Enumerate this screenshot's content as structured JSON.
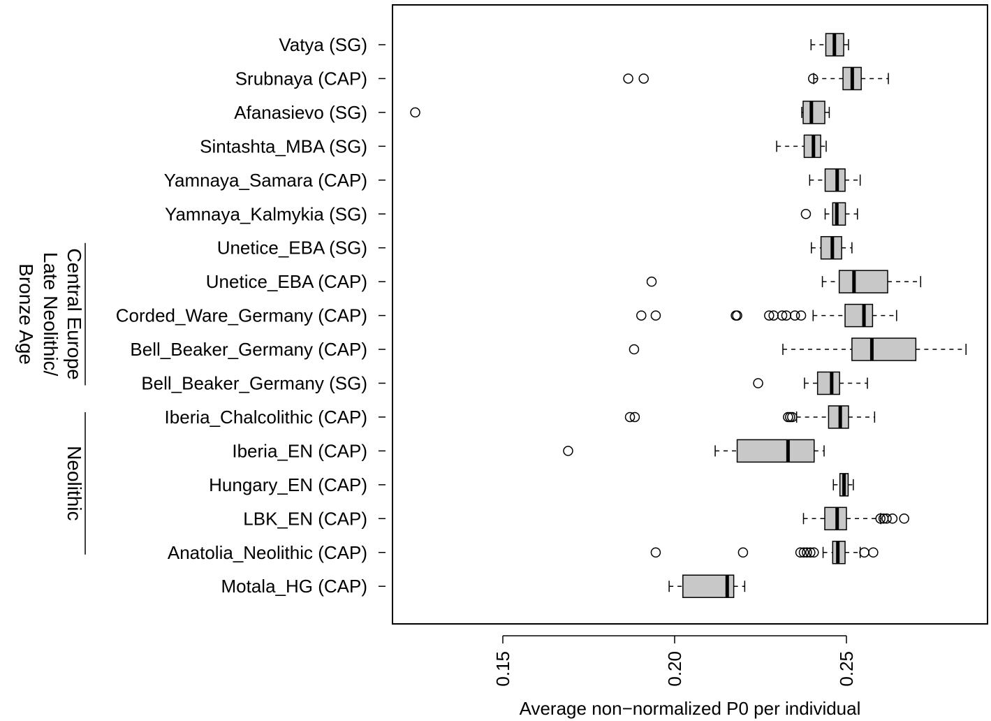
{
  "chart_data": {
    "type": "boxplot",
    "orientation": "horizontal",
    "xlabel": "Average non−normalized P0 per individual",
    "ylabel": "",
    "xlim": [
      0.118,
      0.285
    ],
    "xticks": [
      {
        "value": 0.15,
        "label": "0.15"
      },
      {
        "value": 0.2,
        "label": "0.20"
      },
      {
        "value": 0.25,
        "label": "0.25"
      }
    ],
    "groups": [
      {
        "lines": [
          "Central Europe",
          "Late Neolithic/",
          "Bronze Age"
        ],
        "from": "Unetice_EBA (SG)",
        "to": "Bell_Beaker_Germany (SG)"
      },
      {
        "lines": [
          "Neolithic"
        ],
        "from": "Iberia_Chalcolithic (CAP)",
        "to": "Anatolia_Neolithic (CAP)"
      }
    ],
    "series": [
      {
        "name": "Vatya (SG)",
        "min": 0.2397,
        "q1": 0.244,
        "median": 0.2465,
        "q3": 0.2492,
        "max": 0.2506,
        "outliers": []
      },
      {
        "name": "Srubnaya (CAP)",
        "min": 0.2405,
        "q1": 0.249,
        "median": 0.2517,
        "q3": 0.2543,
        "max": 0.2622,
        "outliers": [
          0.1865,
          0.191,
          0.2403
        ]
      },
      {
        "name": "Afanasievo (SG)",
        "min": 0.237,
        "q1": 0.2374,
        "median": 0.2398,
        "q3": 0.2437,
        "max": 0.245,
        "outliers": [
          0.1245
        ]
      },
      {
        "name": "Sintashta_MBA (SG)",
        "min": 0.2297,
        "q1": 0.2377,
        "median": 0.2404,
        "q3": 0.2425,
        "max": 0.2441,
        "outliers": []
      },
      {
        "name": "Yamnaya_Samara (CAP)",
        "min": 0.2393,
        "q1": 0.2438,
        "median": 0.2473,
        "q3": 0.2496,
        "max": 0.254,
        "outliers": []
      },
      {
        "name": "Yamnaya_Kalmykia (SG)",
        "min": 0.2438,
        "q1": 0.246,
        "median": 0.2472,
        "q3": 0.2497,
        "max": 0.2532,
        "outliers": [
          0.2382
        ]
      },
      {
        "name": "Unetice_EBA (SG)",
        "min": 0.2398,
        "q1": 0.2426,
        "median": 0.2459,
        "q3": 0.2486,
        "max": 0.2516,
        "outliers": []
      },
      {
        "name": "Unetice_EBA (CAP)",
        "min": 0.243,
        "q1": 0.2479,
        "median": 0.2522,
        "q3": 0.262,
        "max": 0.2716,
        "outliers": [
          0.1933
        ]
      },
      {
        "name": "Corded_Ware_Germany (CAP)",
        "min": 0.2403,
        "q1": 0.2496,
        "median": 0.2551,
        "q3": 0.2576,
        "max": 0.2646,
        "outliers": [
          0.1903,
          0.1945,
          0.2178,
          0.2182,
          0.2275,
          0.2288,
          0.2313,
          0.2325,
          0.235,
          0.2368
        ]
      },
      {
        "name": "Bell_Beaker_Germany (CAP)",
        "min": 0.2315,
        "q1": 0.2516,
        "median": 0.2574,
        "q3": 0.2702,
        "max": 0.2848,
        "outliers": [
          0.1882
        ]
      },
      {
        "name": "Bell_Beaker_Germany (SG)",
        "min": 0.2378,
        "q1": 0.2416,
        "median": 0.2457,
        "q3": 0.248,
        "max": 0.2561,
        "outliers": [
          0.2243
        ]
      },
      {
        "name": "Iberia_Chalcolithic (CAP)",
        "min": 0.2355,
        "q1": 0.2448,
        "median": 0.2482,
        "q3": 0.2506,
        "max": 0.2582,
        "outliers": [
          0.187,
          0.1884,
          0.233,
          0.2336,
          0.2342
        ]
      },
      {
        "name": "Iberia_EN (CAP)",
        "min": 0.2118,
        "q1": 0.2182,
        "median": 0.233,
        "q3": 0.2406,
        "max": 0.2435,
        "outliers": [
          0.169
        ]
      },
      {
        "name": "Hungary_EN (CAP)",
        "min": 0.2462,
        "q1": 0.2481,
        "median": 0.2493,
        "q3": 0.2505,
        "max": 0.252,
        "outliers": []
      },
      {
        "name": "LBK_EN (CAP)",
        "min": 0.2375,
        "q1": 0.2437,
        "median": 0.2473,
        "q3": 0.25,
        "max": 0.26,
        "outliers": [
          0.2599,
          0.2608,
          0.2617,
          0.2634,
          0.2668
        ]
      },
      {
        "name": "Anatolia_Neolithic (CAP)",
        "min": 0.2432,
        "q1": 0.246,
        "median": 0.2475,
        "q3": 0.2496,
        "max": 0.254,
        "outliers": [
          0.1945,
          0.2199,
          0.2366,
          0.2376,
          0.2385,
          0.2395,
          0.2405,
          0.2552,
          0.2578
        ]
      },
      {
        "name": "Motala_HG (CAP)",
        "min": 0.1984,
        "q1": 0.2024,
        "median": 0.2153,
        "q3": 0.2172,
        "max": 0.2204,
        "outliers": []
      }
    ]
  }
}
